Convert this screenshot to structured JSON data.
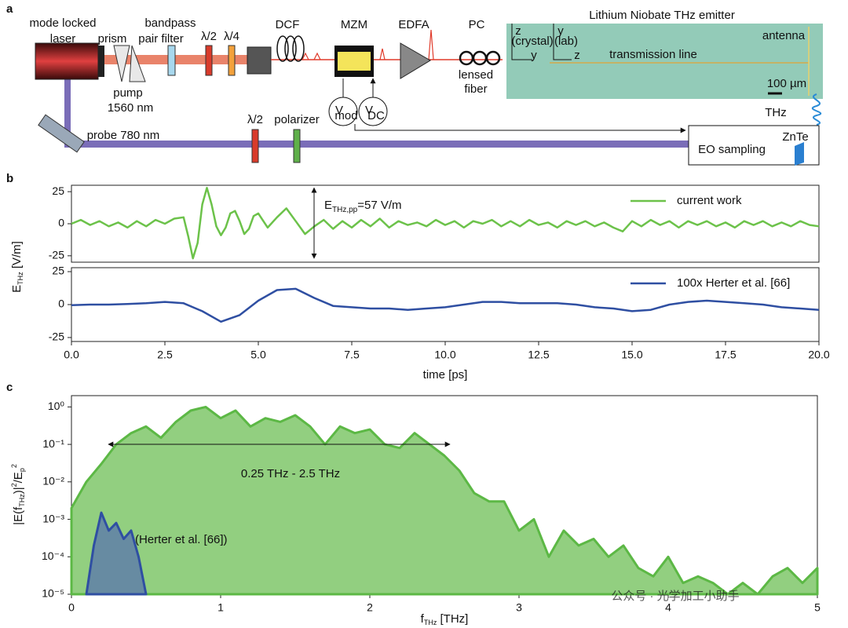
{
  "panel_labels": [
    "a",
    "b",
    "c"
  ],
  "diagram": {
    "labels": [
      "mode locked",
      "laser",
      "prism",
      "bandpass",
      "pair filter",
      "λ/2",
      "λ/4",
      "DCF",
      "MZM",
      "EDFA",
      "PC",
      "Lithium Niobate THz emitter",
      "z",
      "(crystal)",
      "y",
      "y",
      "(lab)",
      "z",
      "antenna",
      "transmission line",
      "100 µm",
      "pump",
      "1560 nm",
      "lensed",
      "fiber",
      "V",
      "mod",
      "V",
      "DC",
      "THz",
      "probe 780 nm",
      "λ/2",
      "polarizer",
      "EO sampling",
      "ZnTe"
    ]
  },
  "chart_data": [
    {
      "type": "line",
      "xlim": [
        0,
        20
      ],
      "ylim": [
        -30,
        30
      ],
      "yticks": [
        -25,
        0,
        25
      ],
      "ylabel_parts": [
        "E",
        "THz",
        " [V/m]"
      ],
      "legend": "upper right",
      "annotation_parts": [
        "E",
        "THz,pp",
        "=57 V/m"
      ],
      "x": [
        0,
        0.25,
        0.5,
        0.75,
        1,
        1.25,
        1.5,
        1.75,
        2,
        2.25,
        2.5,
        2.75,
        3,
        3.125,
        3.25,
        3.375,
        3.5,
        3.625,
        3.75,
        3.875,
        4,
        4.125,
        4.25,
        4.375,
        4.5,
        4.625,
        4.75,
        4.875,
        5,
        5.25,
        5.5,
        5.75,
        6,
        6.25,
        6.5,
        6.75,
        7,
        7.25,
        7.5,
        7.75,
        8,
        8.25,
        8.5,
        8.75,
        9,
        9.25,
        9.5,
        9.75,
        10,
        10.25,
        10.5,
        10.75,
        11,
        11.25,
        11.5,
        11.75,
        12,
        12.25,
        12.5,
        12.75,
        13,
        13.25,
        13.5,
        13.75,
        14,
        14.25,
        14.5,
        14.75,
        15,
        15.25,
        15.5,
        15.75,
        16,
        16.25,
        16.5,
        16.75,
        17,
        17.25,
        17.5,
        17.75,
        18,
        18.25,
        18.5,
        18.75,
        19,
        19.25,
        19.5,
        19.75,
        20
      ],
      "series": [
        {
          "name": "current work",
          "color": "#6cc24a",
          "values": [
            0,
            3,
            -1,
            2,
            -2,
            1,
            -3,
            2,
            -2,
            3,
            0,
            4,
            5,
            -10,
            -27,
            -15,
            15,
            28,
            15,
            -2,
            -9,
            -3,
            8,
            10,
            2,
            -8,
            -4,
            6,
            8,
            -3,
            5,
            12,
            2,
            -8,
            -2,
            3,
            -4,
            2,
            -3,
            3,
            -2,
            4,
            -3,
            2,
            -1,
            1,
            -2,
            3,
            -1,
            2,
            -3,
            2,
            0,
            3,
            -2,
            2,
            -2,
            3,
            -1,
            1,
            -3,
            2,
            -1,
            2,
            -2,
            1,
            -3,
            -6,
            2,
            -2,
            3,
            -1,
            2,
            -3,
            2,
            -1,
            2,
            -2,
            1,
            -3,
            2,
            -1,
            2,
            -2,
            1,
            -2,
            2,
            -1,
            -2
          ]
        }
      ]
    },
    {
      "type": "line",
      "xlim": [
        0,
        20
      ],
      "ylim": [
        -28,
        28
      ],
      "yticks": [
        -25,
        0,
        25
      ],
      "xlabel": "time [ps]",
      "legend": "upper right",
      "xticks": [
        {
          "value": 0,
          "label": "0.0"
        },
        2.5,
        {
          "value": 5,
          "label": "5.0"
        },
        7.5,
        {
          "value": 10,
          "label": "10.0"
        },
        12.5,
        {
          "value": 15,
          "label": "15.0"
        },
        17.5,
        {
          "value": 20,
          "label": "20.0"
        }
      ],
      "x": [
        0,
        0.5,
        1,
        1.5,
        2,
        2.5,
        3,
        3.5,
        4,
        4.5,
        5,
        5.5,
        6,
        6.5,
        7,
        7.5,
        8,
        8.5,
        9,
        9.5,
        10,
        10.5,
        11,
        11.5,
        12,
        12.5,
        13,
        13.5,
        14,
        14.5,
        15,
        15.5,
        16,
        16.5,
        17,
        17.5,
        18,
        18.5,
        19,
        19.5,
        20
      ],
      "series": [
        {
          "name": "100x Herter et al. [66]",
          "color": "#2f4fa2",
          "values": [
            -0.5,
            0,
            0,
            0.5,
            1,
            2,
            1,
            -5,
            -13,
            -8,
            3,
            11,
            12,
            5,
            -1,
            -2,
            -3,
            -3,
            -4,
            -3,
            -2,
            0,
            2,
            2,
            1,
            1,
            1,
            0,
            -2,
            -3,
            -5,
            -4,
            0,
            2,
            3,
            2,
            1,
            0,
            -2,
            -3,
            -4
          ]
        }
      ]
    },
    {
      "type": "area",
      "log_y": true,
      "xlim": [
        0,
        5
      ],
      "ylim": [
        1e-05,
        2
      ],
      "xticks": [
        0,
        1,
        2,
        3,
        4,
        5
      ],
      "yticks": [
        {
          "value": 1,
          "label": "10⁰"
        },
        {
          "value": 0.1,
          "label": "10⁻¹"
        },
        {
          "value": 0.01,
          "label": "10⁻²"
        },
        {
          "value": 0.001,
          "label": "10⁻³"
        },
        {
          "value": 0.0001,
          "label": "10⁻⁴"
        },
        {
          "value": 1e-05,
          "label": "10⁻⁵"
        }
      ],
      "xlabel_parts": [
        "f",
        "THz",
        " [THz]"
      ],
      "ylabel_parts": [
        "|E(f",
        "THz",
        ")|",
        "2",
        "/E",
        "p",
        "2"
      ],
      "span_label": "0.25 THz - 2.5 THz",
      "series_label": "(Herter et al. [66])",
      "series": [
        {
          "color": "#5cb845",
          "fill": "#92cf80",
          "x": [
            0,
            0.1,
            0.2,
            0.3,
            0.4,
            0.5,
            0.6,
            0.7,
            0.8,
            0.9,
            1,
            1.1,
            1.2,
            1.3,
            1.4,
            1.5,
            1.6,
            1.7,
            1.8,
            1.9,
            2,
            2.1,
            2.2,
            2.3,
            2.4,
            2.5,
            2.6,
            2.7,
            2.8,
            2.9,
            3,
            3.1,
            3.2,
            3.3,
            3.4,
            3.5,
            3.6,
            3.7,
            3.8,
            3.9,
            4,
            4.1,
            4.2,
            4.3,
            4.4,
            4.5,
            4.6,
            4.7,
            4.8,
            4.9,
            5
          ],
          "values": [
            0.002,
            0.01,
            0.03,
            0.1,
            0.2,
            0.3,
            0.15,
            0.4,
            0.8,
            1,
            0.5,
            0.8,
            0.3,
            0.5,
            0.4,
            0.6,
            0.3,
            0.1,
            0.3,
            0.2,
            0.25,
            0.1,
            0.08,
            0.2,
            0.1,
            0.05,
            0.02,
            0.005,
            0.003,
            0.003,
            0.0005,
            0.001,
            0.0001,
            0.0005,
            0.0002,
            0.0003,
            0.0001,
            0.0002,
            5e-05,
            3e-05,
            0.0001,
            2e-05,
            3e-05,
            2e-05,
            1e-05,
            2e-05,
            1e-05,
            3e-05,
            5e-05,
            2e-05,
            5e-05
          ]
        },
        {
          "color": "#2f4fa2",
          "fill": "#5f7fa8",
          "x": [
            0.1,
            0.15,
            0.2,
            0.25,
            0.3,
            0.35,
            0.4,
            0.45,
            0.5
          ],
          "values": [
            1e-05,
            0.0002,
            0.0015,
            0.0005,
            0.0008,
            0.0003,
            0.0005,
            0.0001,
            1e-05
          ]
        }
      ]
    }
  ],
  "watermark": "公众号 · 光学加工小助手"
}
